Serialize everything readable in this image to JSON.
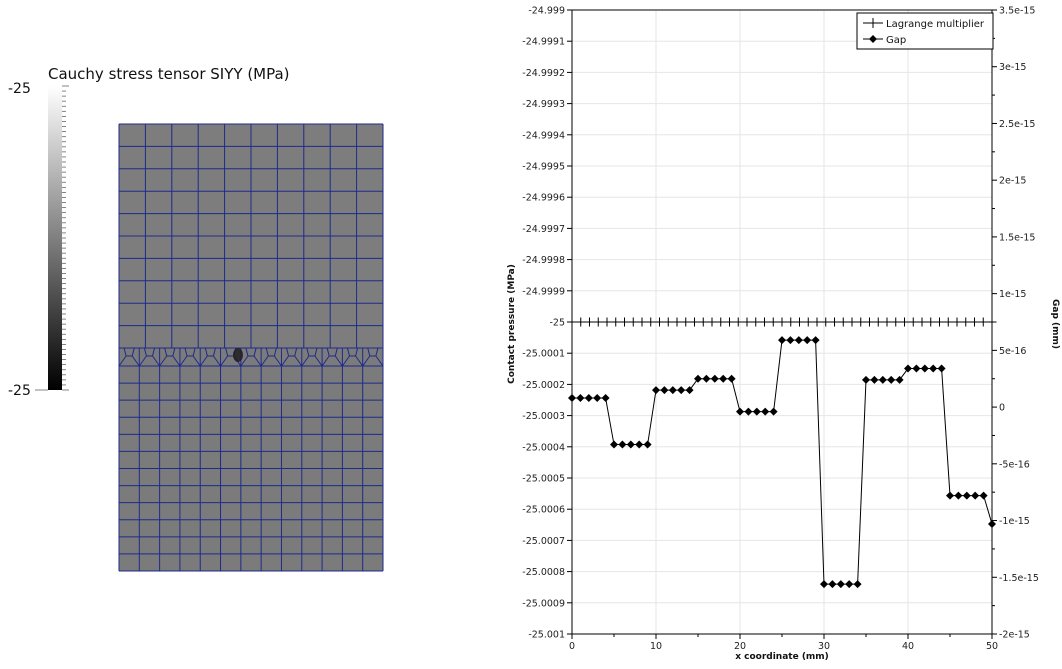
{
  "colorbar": {
    "title": "Cauchy stress tensor SIYY (MPa)",
    "max_label": "-25",
    "min_label": "-25"
  },
  "mesh": {
    "upper_cols": 10,
    "upper_rows": 10,
    "lower_cols": 13,
    "lower_rows": 12
  },
  "chart_data": {
    "type": "line",
    "xlabel": "x coordinate (mm)",
    "ylabel": "Contact pressure (MPa)",
    "y2label": "Gap (mm)",
    "xlim": [
      0,
      50
    ],
    "ylim": [
      -25.001,
      -24.999
    ],
    "y2lim": [
      -2e-15,
      3.5e-15
    ],
    "x_ticks": [
      "0",
      "10",
      "20",
      "30",
      "40",
      "50"
    ],
    "y_ticks": [
      "-24.999",
      "-24.9991",
      "-24.9992",
      "-24.9993",
      "-24.9994",
      "-24.9995",
      "-24.9996",
      "-24.9997",
      "-24.9998",
      "-24.9999",
      "-25",
      "-25.0001",
      "-25.0002",
      "-25.0003",
      "-25.0004",
      "-25.0005",
      "-25.0006",
      "-25.0007",
      "-25.0008",
      "-25.0009",
      "-25.001"
    ],
    "y2_ticks": [
      "-2e-15",
      "-1.5e-15",
      "-1e-15",
      "-5e-16",
      "0",
      "5e-16",
      "1e-15",
      "1.5e-15",
      "2e-15",
      "2.5e-15",
      "3e-15",
      "3.5e-15"
    ],
    "grid": true,
    "legend_position": "top-right",
    "series": [
      {
        "name": "Lagrange multiplier",
        "axis": "left",
        "marker": "plus",
        "x": [
          0,
          1.0417,
          2.0833,
          3.125,
          4.1667,
          5.2083,
          6.25,
          7.2917,
          8.3333,
          9.375,
          10.4167,
          11.4583,
          12.5,
          13.5417,
          14.5833,
          15.625,
          16.6667,
          17.7083,
          18.75,
          19.7917,
          20.8333,
          21.875,
          22.9167,
          23.9583,
          25,
          26.0417,
          27.0833,
          28.125,
          29.1667,
          30.2083,
          31.25,
          32.2917,
          33.3333,
          34.375,
          35.4167,
          36.4583,
          37.5,
          38.5417,
          39.5833,
          40.625,
          41.6667,
          42.7083,
          43.75,
          44.7917,
          45.8333,
          46.875,
          47.9167,
          48.9583,
          50
        ],
        "y": [
          -25,
          -25,
          -25,
          -25,
          -25,
          -25,
          -25,
          -25,
          -25,
          -25,
          -25,
          -25,
          -25,
          -25,
          -25,
          -25,
          -25,
          -25,
          -25,
          -25,
          -25,
          -25,
          -25,
          -25,
          -25,
          -25,
          -25,
          -25,
          -25,
          -25,
          -25,
          -25,
          -25,
          -25,
          -25,
          -25,
          -25,
          -25,
          -25,
          -25,
          -25,
          -25,
          -25,
          -25,
          -25,
          -25,
          -25,
          -25,
          -25
        ]
      },
      {
        "name": "Gap",
        "axis": "right",
        "marker": "diamond",
        "x": [
          0,
          1,
          2,
          3,
          4,
          5,
          6,
          7,
          8,
          9,
          10,
          11,
          12,
          13,
          14,
          15,
          16,
          17,
          18,
          19,
          20,
          21,
          22,
          23,
          24,
          25,
          26,
          27,
          28,
          29,
          30,
          31,
          32,
          33,
          34,
          35,
          36,
          37,
          38,
          39,
          40,
          41,
          42,
          43,
          44,
          45,
          46,
          47,
          48,
          49,
          50
        ],
        "y": [
          8e-17,
          8e-17,
          8e-17,
          8e-17,
          8e-17,
          -3.3e-16,
          -3.3e-16,
          -3.3e-16,
          -3.3e-16,
          -3.3e-16,
          1.5e-16,
          1.5e-16,
          1.5e-16,
          1.5e-16,
          1.5e-16,
          2.5e-16,
          2.5e-16,
          2.5e-16,
          2.5e-16,
          2.5e-16,
          -4e-17,
          -4e-17,
          -4e-17,
          -4e-17,
          -4e-17,
          5.9e-16,
          5.9e-16,
          5.9e-16,
          5.9e-16,
          5.9e-16,
          -1.56e-15,
          -1.56e-15,
          -1.56e-15,
          -1.56e-15,
          -1.56e-15,
          2.4e-16,
          2.4e-16,
          2.4e-16,
          2.4e-16,
          2.4e-16,
          3.4e-16,
          3.4e-16,
          3.4e-16,
          3.4e-16,
          3.4e-16,
          -7.8e-16,
          -7.8e-16,
          -7.8e-16,
          -7.8e-16,
          -7.8e-16,
          -1.03e-15
        ]
      }
    ]
  }
}
